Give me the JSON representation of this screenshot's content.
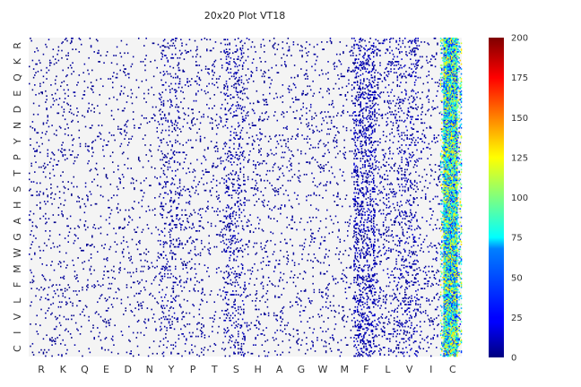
{
  "chart_data": {
    "type": "heatmap",
    "title": "20x20 Plot VT18",
    "xlabel": "",
    "ylabel": "",
    "x_categories": [
      "R",
      "K",
      "Q",
      "E",
      "D",
      "N",
      "Y",
      "P",
      "T",
      "S",
      "H",
      "A",
      "G",
      "W",
      "M",
      "F",
      "L",
      "V",
      "I",
      "C"
    ],
    "y_categories": [
      "R",
      "K",
      "Q",
      "E",
      "D",
      "N",
      "Y",
      "P",
      "T",
      "S",
      "H",
      "A",
      "G",
      "W",
      "M",
      "F",
      "L",
      "V",
      "I",
      "C"
    ],
    "colorbar": {
      "colormap": "jet",
      "range": [
        0,
        200
      ],
      "ticks": [
        0,
        25,
        50,
        75,
        100,
        125,
        150,
        175,
        200
      ]
    },
    "background_color": "#f4f4f4",
    "grid": false,
    "column_density": [
      0.04,
      0.04,
      0.03,
      0.03,
      0.03,
      0.03,
      0.09,
      0.05,
      0.04,
      0.12,
      0.05,
      0.04,
      0.04,
      0.04,
      0.04,
      0.22,
      0.09,
      0.12,
      0.05,
      0.93
    ],
    "column_mean_value": [
      4,
      4,
      4,
      4,
      4,
      4,
      6,
      5,
      5,
      7,
      5,
      5,
      5,
      5,
      5,
      9,
      7,
      8,
      6,
      80
    ]
  },
  "labels": {
    "title": "20x20 Plot VT18",
    "x_ticks": [
      "R",
      "K",
      "Q",
      "E",
      "D",
      "N",
      "Y",
      "P",
      "T",
      "S",
      "H",
      "A",
      "G",
      "W",
      "M",
      "F",
      "L",
      "V",
      "I",
      "C"
    ],
    "y_ticks": [
      "R",
      "K",
      "Q",
      "E",
      "D",
      "N",
      "Y",
      "P",
      "T",
      "S",
      "H",
      "A",
      "G",
      "W",
      "M",
      "F",
      "L",
      "V",
      "I",
      "C"
    ],
    "cbar_ticks": [
      "0",
      "25",
      "50",
      "75",
      "100",
      "125",
      "150",
      "175",
      "200"
    ]
  }
}
